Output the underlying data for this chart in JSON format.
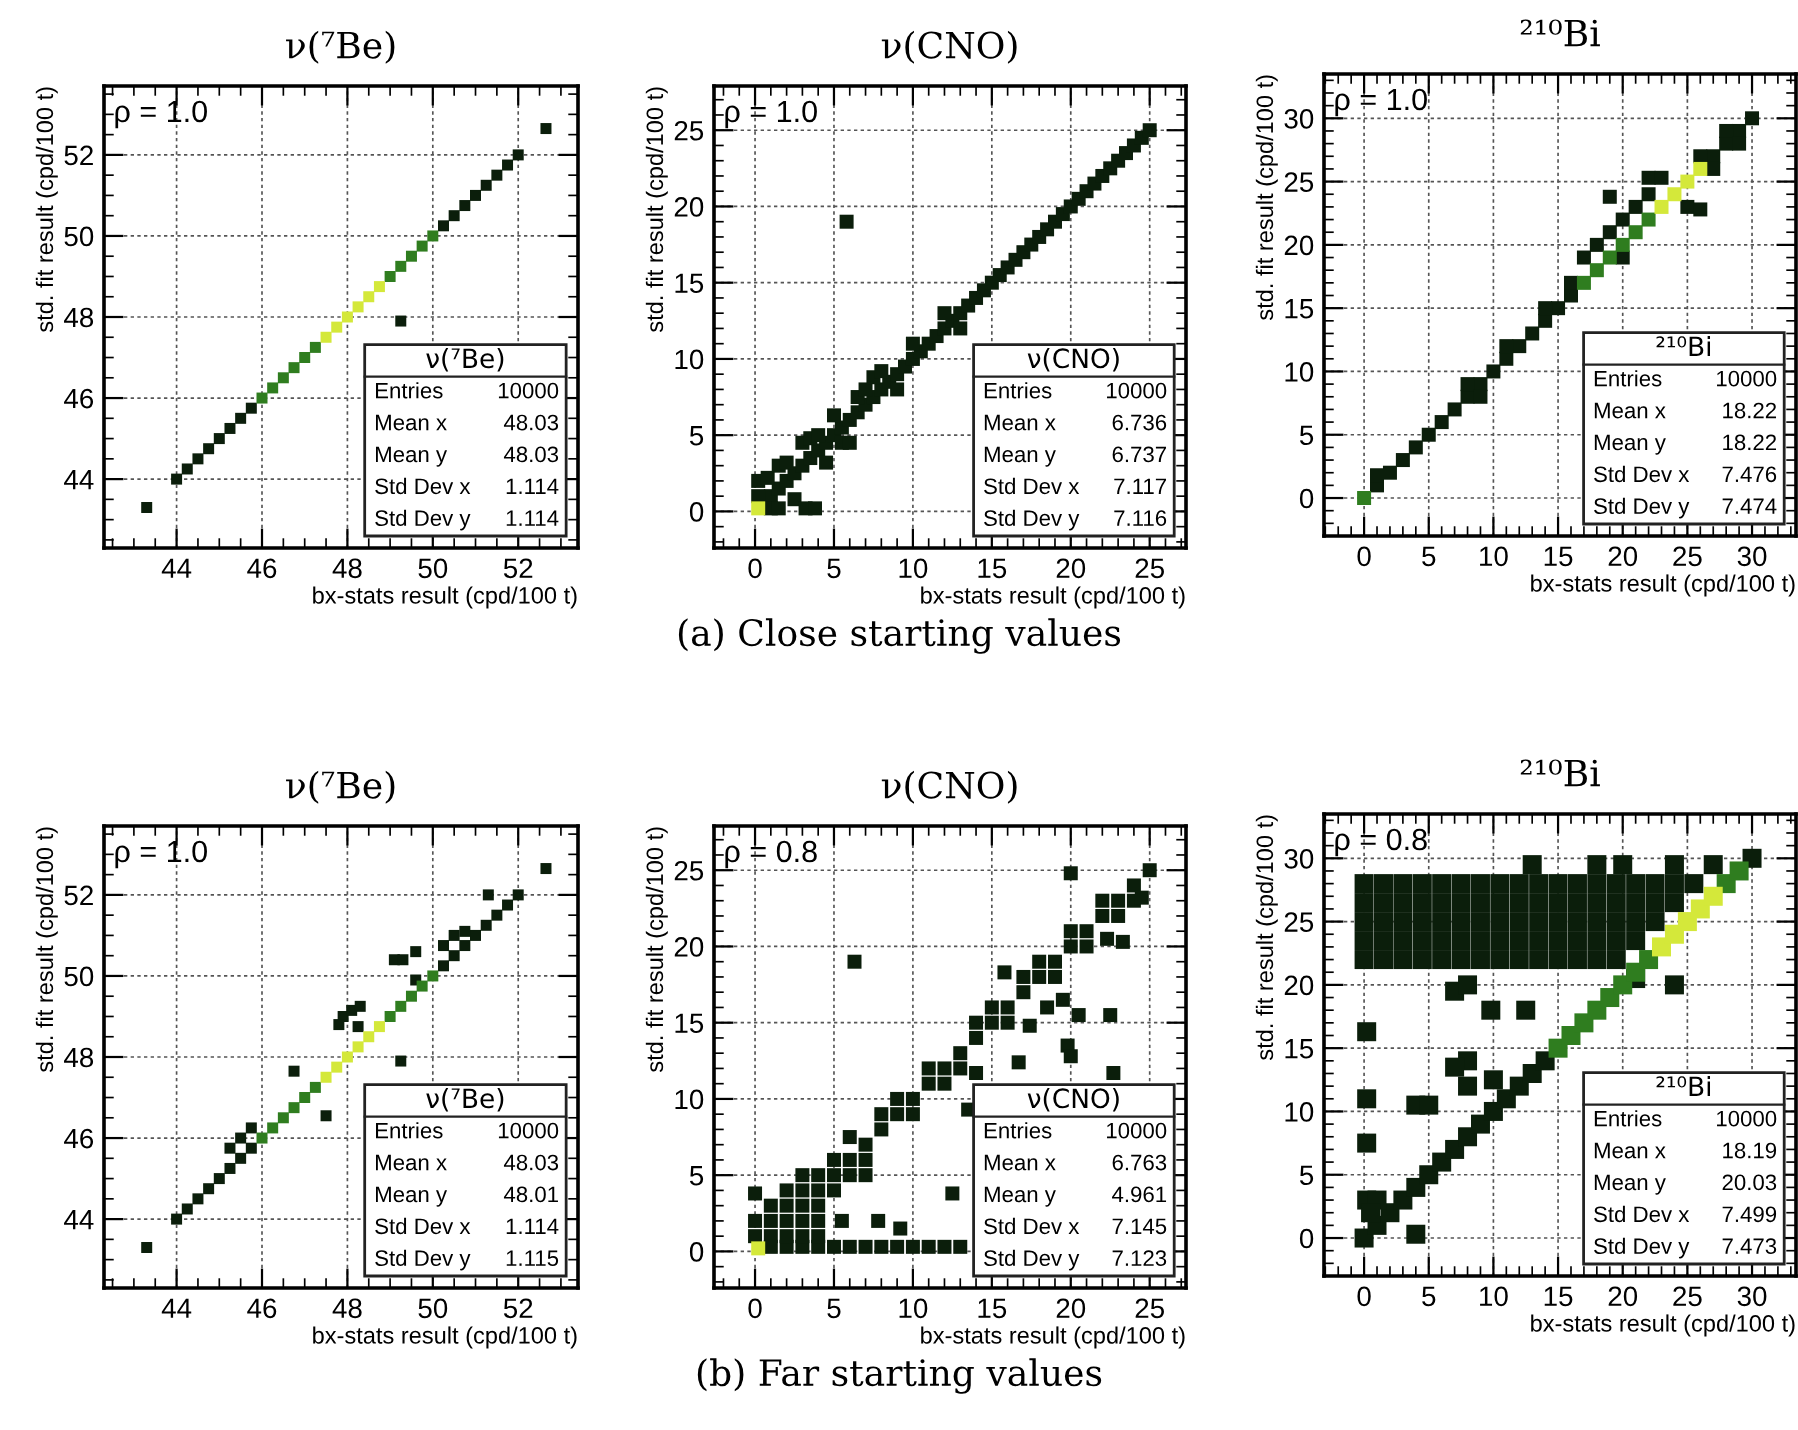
{
  "chart_data": [
    {
      "type": "scatter",
      "title": "ν(⁷Be)",
      "xlabel": "bx-stats result (cpd/100 t)",
      "ylabel": "std. fit result (cpd/100 t)",
      "xlim": [
        42.3,
        53.4
      ],
      "ylim": [
        42.3,
        53.7
      ],
      "xticks": [
        44,
        46,
        48,
        50,
        52
      ],
      "yticks": [
        44,
        46,
        48,
        50,
        52
      ],
      "grid": true,
      "marker": "square",
      "annotations": [
        "ρ = 1.0",
        "ν(⁷Be)",
        "Entries",
        "10000",
        "Mean x",
        "48.03",
        "Mean y",
        "48.03",
        "Std Dev x",
        "1.114",
        "Std Dev y",
        "1.114"
      ],
      "series": [
        {
          "color": "#0b1e0b",
          "x": [
            44,
            44.25,
            44.5,
            44.75,
            45,
            45.25,
            45.5,
            45.75,
            50.25,
            50.5,
            50.75,
            51,
            51.25,
            51.5,
            51.75,
            52,
            43.3,
            52.65,
            49.25
          ],
          "values": [
            44,
            44.25,
            44.5,
            44.75,
            45,
            45.25,
            45.5,
            45.75,
            50.25,
            50.5,
            50.75,
            51,
            51.25,
            51.5,
            51.75,
            52,
            43.3,
            52.65,
            47.9
          ]
        },
        {
          "color": "#2f7d1f",
          "x": [
            46,
            46.25,
            46.5,
            46.75,
            47,
            47.25,
            49,
            49.25,
            49.5,
            49.75,
            50
          ],
          "values": [
            46,
            46.25,
            46.5,
            46.75,
            47,
            47.25,
            49,
            49.25,
            49.5,
            49.75,
            50
          ]
        },
        {
          "color": "#d4e83a",
          "x": [
            47.5,
            47.75,
            48,
            48.25,
            48.5,
            48.75
          ],
          "values": [
            47.5,
            47.75,
            48,
            48.25,
            48.5,
            48.75
          ]
        }
      ]
    },
    {
      "type": "scatter",
      "title": "ν(CNO)",
      "xlabel": "bx-stats result (cpd/100 t)",
      "ylabel": "std. fit result (cpd/100 t)",
      "xlim": [
        -2.6,
        27.3
      ],
      "ylim": [
        -2.4,
        27.9
      ],
      "xticks": [
        0,
        5,
        10,
        15,
        20,
        25
      ],
      "yticks": [
        0,
        5,
        10,
        15,
        20,
        25
      ],
      "grid": true,
      "marker": "square",
      "annotations": [
        "ρ = 1.0",
        "ν(CNO)",
        "Entries",
        "10000",
        "Mean x",
        "6.736",
        "Mean y",
        "6.737",
        "Std Dev x",
        "7.117",
        "Std Dev y",
        "7.116",
        "(a) Close starting values"
      ],
      "series": [
        {
          "color": "#0b1e0b",
          "x": [
            1,
            1.5,
            2,
            2.5,
            3,
            3.5,
            4,
            4.5,
            5,
            5.5,
            6,
            6.5,
            7,
            7.5,
            8,
            8.5,
            9,
            9.5,
            10,
            10.5,
            11,
            11.5,
            12,
            12.5,
            13,
            13.5,
            14,
            14.5,
            15,
            15.5,
            16,
            16.5,
            17,
            17.5,
            18,
            18.5,
            19,
            19.5,
            20,
            20.5,
            21,
            21.5,
            22,
            22.5,
            23,
            23.5,
            24,
            24.5,
            25,
            0.2,
            0.2,
            0.8,
            1.5,
            2,
            2.5,
            3,
            3.5,
            4,
            4.5,
            5,
            5.5,
            6,
            6.5,
            7,
            7.5,
            8,
            9,
            10,
            12,
            13,
            1,
            1.5,
            3.2,
            3.8,
            5.8
          ],
          "values": [
            1,
            1.5,
            2,
            2.5,
            3,
            3.5,
            4,
            4.5,
            5,
            5.5,
            6,
            6.5,
            7,
            7.5,
            8,
            8.5,
            9,
            9.5,
            10,
            10.5,
            11,
            11.5,
            12,
            12.5,
            13,
            13.5,
            14,
            14.5,
            15,
            15.5,
            16,
            16.5,
            17,
            17.5,
            18,
            18.5,
            19,
            19.5,
            20,
            20.5,
            21,
            21.5,
            22,
            22.5,
            23,
            23.5,
            24,
            24.5,
            25,
            1,
            2,
            2.2,
            3,
            3.2,
            0.8,
            4.5,
            4.8,
            5,
            3.2,
            6.3,
            4.5,
            4.5,
            7.5,
            8,
            8.8,
            9.2,
            8,
            11,
            13,
            12,
            0.2,
            0.2,
            0.2,
            0.2,
            19
          ]
        },
        {
          "color": "#d4e83a",
          "x": [
            0.2
          ],
          "values": [
            0.2
          ]
        }
      ]
    },
    {
      "type": "scatter",
      "title": "²¹⁰Bi",
      "xlabel": "bx-stats result (cpd/100 t)",
      "ylabel": "std. fit result (cpd/100 t)",
      "xlim": [
        -3.1,
        33.4
      ],
      "ylim": [
        -3.0,
        33.5
      ],
      "xticks": [
        0,
        5,
        10,
        15,
        20,
        25,
        30
      ],
      "yticks": [
        0,
        5,
        10,
        15,
        20,
        25,
        30
      ],
      "grid": true,
      "marker": "square",
      "annotations": [
        "ρ = 1.0",
        "²¹⁰Bi",
        "Entries",
        "10000",
        "Mean x",
        "18.22",
        "Mean y",
        "18.22",
        "Std Dev x",
        "7.476",
        "Std Dev y",
        "7.474"
      ],
      "series": [
        {
          "color": "#0b1e0b",
          "x": [
            1,
            2,
            3,
            4,
            5,
            6,
            7,
            8,
            9,
            10,
            11,
            12,
            13,
            14,
            15,
            16,
            27,
            28,
            29,
            30,
            18,
            19,
            17,
            20,
            21,
            22,
            20,
            16,
            25,
            26,
            19,
            22,
            23,
            28,
            29,
            26,
            27,
            14,
            11,
            8,
            9,
            1
          ],
          "values": [
            1,
            2,
            3,
            4,
            5,
            6,
            7,
            8,
            9,
            10,
            11,
            12,
            13,
            14,
            15,
            16,
            27,
            28,
            29,
            30,
            20,
            21,
            19,
            22,
            23,
            24,
            19,
            17,
            23,
            22.8,
            23.8,
            25.3,
            25.3,
            29,
            28,
            27,
            26,
            15,
            12,
            9,
            8,
            1.8
          ]
        },
        {
          "color": "#2f7d1f",
          "x": [
            0,
            17,
            18,
            19,
            20,
            21,
            22
          ],
          "values": [
            0,
            17,
            18,
            19,
            20,
            21,
            22
          ]
        },
        {
          "color": "#d4e83a",
          "x": [
            23,
            24,
            25,
            26
          ],
          "values": [
            23,
            24,
            25,
            26
          ]
        }
      ]
    },
    {
      "type": "scatter",
      "title": "ν(⁷Be)",
      "xlabel": "bx-stats result (cpd/100 t)",
      "ylabel": "std. fit result (cpd/100 t)",
      "xlim": [
        42.3,
        53.4
      ],
      "ylim": [
        42.3,
        53.7
      ],
      "xticks": [
        44,
        46,
        48,
        50,
        52
      ],
      "yticks": [
        44,
        46,
        48,
        50,
        52
      ],
      "grid": true,
      "marker": "square",
      "annotations": [
        "ρ = 1.0",
        "ν(⁷Be)",
        "Entries",
        "10000",
        "Mean x",
        "48.03",
        "Mean y",
        "48.01",
        "Std Dev x",
        "1.114",
        "Std Dev y",
        "1.115"
      ],
      "series": [
        {
          "color": "#0b1e0b",
          "x": [
            44,
            44.25,
            44.5,
            44.75,
            45,
            45.25,
            45.5,
            45.75,
            50.25,
            50.5,
            50.75,
            51,
            51.25,
            51.5,
            51.75,
            52,
            45.25,
            45.5,
            45.75,
            46.75,
            47.5,
            47.9,
            48.1,
            48.3,
            47.8,
            48.25,
            49.25,
            49.1,
            49.3,
            49.6,
            49.6,
            50.25,
            50.5,
            50.75,
            51.3,
            52.65,
            43.3
          ],
          "values": [
            44,
            44.25,
            44.5,
            44.75,
            45,
            45.25,
            45.5,
            45.75,
            50.25,
            50.5,
            50.75,
            51,
            51.25,
            51.5,
            51.75,
            52,
            45.75,
            46,
            46.25,
            47.65,
            46.55,
            49,
            49.15,
            49.25,
            48.8,
            48.75,
            47.9,
            50.4,
            50.4,
            50.6,
            49.9,
            50.75,
            51,
            51.1,
            52,
            52.65,
            43.3
          ]
        },
        {
          "color": "#2f7d1f",
          "x": [
            46,
            46.25,
            46.5,
            46.75,
            47,
            47.25,
            49,
            49.25,
            49.5,
            49.75,
            50
          ],
          "values": [
            46,
            46.25,
            46.5,
            46.75,
            47,
            47.25,
            49,
            49.25,
            49.5,
            49.75,
            50
          ]
        },
        {
          "color": "#d4e83a",
          "x": [
            47.5,
            47.75,
            48,
            48.25,
            48.5,
            48.75
          ],
          "values": [
            47.5,
            47.75,
            48,
            48.25,
            48.5,
            48.75
          ]
        }
      ]
    },
    {
      "type": "scatter",
      "title": "ν(CNO)",
      "xlabel": "bx-stats result (cpd/100 t)",
      "ylabel": "std. fit result (cpd/100 t)",
      "xlim": [
        -2.6,
        27.3
      ],
      "ylim": [
        -2.4,
        27.9
      ],
      "xticks": [
        0,
        5,
        10,
        15,
        20,
        25
      ],
      "yticks": [
        0,
        5,
        10,
        15,
        20,
        25
      ],
      "grid": true,
      "marker": "square",
      "annotations": [
        "ρ = 0.8",
        "ν(CNO)",
        "Entries",
        "10000",
        "Mean x",
        "6.763",
        "Mean y",
        "4.961",
        "Std Dev x",
        "7.145",
        "Std Dev y",
        "7.123",
        "(b) Far starting values"
      ],
      "series": [
        {
          "color": "#0b1e0b",
          "x": [
            1,
            2,
            3,
            4,
            5,
            6,
            7,
            8,
            9,
            10,
            11,
            12,
            13,
            14,
            15,
            16,
            17,
            18,
            19,
            20,
            21,
            22,
            23,
            24,
            25,
            1,
            2,
            3,
            4,
            5,
            6,
            7,
            8,
            9,
            10,
            11,
            12,
            13,
            0,
            0,
            0,
            1,
            1,
            2,
            2,
            2,
            3,
            3,
            3,
            3,
            4,
            4,
            4,
            4,
            5,
            5,
            6,
            6,
            7,
            8,
            9,
            10,
            11,
            12,
            13,
            14,
            15,
            16,
            17,
            18,
            19,
            20,
            21,
            22,
            23,
            24,
            6.3,
            5.5,
            7.8,
            9.2,
            7,
            12.5,
            13.5,
            14,
            15.8,
            16.7,
            17.4,
            18.5,
            19.5,
            19.8,
            20,
            20.5,
            22.5,
            22.7,
            20,
            22.3,
            23.3,
            24.5
          ],
          "values": [
            1,
            2,
            3,
            4,
            5,
            6,
            7,
            8,
            9,
            10,
            11,
            12,
            13,
            14,
            15,
            16,
            17,
            18,
            19,
            20,
            21,
            22,
            23,
            24,
            25,
            0.3,
            0.3,
            0.3,
            0.3,
            0.3,
            0.3,
            0.3,
            0.3,
            0.3,
            0.3,
            0.3,
            0.3,
            0.3,
            1,
            2,
            3.8,
            2,
            3,
            1,
            3,
            4,
            1,
            2,
            4,
            5,
            1,
            2,
            3,
            5,
            4,
            6,
            5,
            7.5,
            6,
            9,
            10,
            9,
            12,
            11,
            12,
            15,
            16,
            15,
            18,
            19,
            18,
            21,
            20,
            23,
            22,
            23,
            19,
            2,
            2,
            1.5,
            5,
            3.8,
            9.3,
            11.7,
            18.3,
            12.4,
            14.8,
            16,
            16.5,
            13.5,
            12.8,
            15.5,
            15.5,
            11.7,
            24.8,
            20.5,
            20.3,
            23.2
          ]
        },
        {
          "color": "#d4e83a",
          "x": [
            0.2
          ],
          "values": [
            0.2
          ]
        }
      ]
    },
    {
      "type": "scatter",
      "title": "²¹⁰Bi",
      "xlabel": "bx-stats result (cpd/100 t)",
      "ylabel": "std. fit result (cpd/100 t)",
      "xlim": [
        -3.1,
        33.4
      ],
      "ylim": [
        -3.0,
        33.5
      ],
      "xticks": [
        0,
        5,
        10,
        15,
        20,
        25,
        30
      ],
      "yticks": [
        0,
        5,
        10,
        15,
        20,
        25,
        30
      ],
      "grid": true,
      "marker": "square",
      "annotations": [
        "ρ = 0.8",
        "²¹⁰Bi",
        "Entries",
        "10000",
        "Mean x",
        "18.19",
        "Mean y",
        "20.03",
        "Std Dev x",
        "7.499",
        "Std Dev y",
        "7.473"
      ],
      "series": [
        {
          "color": "#0b1e0b",
          "x": [
            0,
            1,
            2,
            3,
            4,
            5,
            6,
            7,
            8,
            9,
            10,
            11,
            12,
            13,
            14,
            30,
            0,
            1.5,
            3,
            4.5,
            6,
            7.5,
            9,
            10.5,
            12,
            13.5,
            15,
            16.5,
            18,
            19.5,
            0,
            1.5,
            3,
            4.5,
            6,
            7.5,
            9,
            10.5,
            12,
            13.5,
            15,
            16.5,
            18,
            19.5,
            21,
            0,
            1.5,
            3,
            4.5,
            6,
            7.5,
            9,
            10.5,
            12,
            13.5,
            15,
            16.5,
            18,
            19.5,
            21,
            22.5,
            0,
            1.5,
            3,
            4.5,
            6,
            7.5,
            9,
            10.5,
            12,
            13.5,
            15,
            16.5,
            18,
            19.5,
            21,
            22.5,
            24,
            0,
            1.5,
            3,
            4.5,
            6,
            7.5,
            9,
            10.5,
            12,
            13.5,
            15,
            16.5,
            18,
            19.5,
            21,
            22.5,
            24,
            25.5,
            13,
            18,
            20,
            24,
            27,
            0.2,
            0.2,
            0.2,
            0.2,
            1,
            0.5,
            4,
            5,
            4,
            8,
            8,
            7,
            10,
            9.8,
            12.5,
            7,
            8,
            21,
            24
          ],
          "values": [
            0,
            1,
            2,
            3,
            4,
            5,
            6,
            7,
            8,
            9,
            10,
            11,
            12,
            13,
            14,
            30,
            22,
            22,
            22,
            22,
            22,
            22,
            22,
            22,
            22,
            22,
            22,
            22,
            22,
            22,
            23.5,
            23.5,
            23.5,
            23.5,
            23.5,
            23.5,
            23.5,
            23.5,
            23.5,
            23.5,
            23.5,
            23.5,
            23.5,
            23.5,
            23.5,
            25,
            25,
            25,
            25,
            25,
            25,
            25,
            25,
            25,
            25,
            25,
            25,
            25,
            25,
            25,
            25,
            26.5,
            26.5,
            26.5,
            26.5,
            26.5,
            26.5,
            26.5,
            26.5,
            26.5,
            26.5,
            26.5,
            26.5,
            26.5,
            26.5,
            26.5,
            26.5,
            26.5,
            28,
            28,
            28,
            28,
            28,
            28,
            28,
            28,
            28,
            28,
            28,
            28,
            28,
            28,
            28,
            28,
            28,
            28,
            29.5,
            29.5,
            29.5,
            29.5,
            29.5,
            16.3,
            11,
            7.5,
            3,
            3,
            2,
            10.5,
            10.5,
            0.3,
            14,
            12,
            13.5,
            12.5,
            18,
            18,
            19.5,
            20,
            20.5,
            20
          ]
        },
        {
          "color": "#2f7d1f",
          "x": [
            15,
            16,
            17,
            18,
            19,
            20,
            21,
            22,
            28,
            29
          ],
          "values": [
            15,
            16,
            17,
            18,
            19,
            20,
            21,
            22,
            28,
            29
          ]
        },
        {
          "color": "#d4e83a",
          "x": [
            23,
            24,
            25,
            26,
            27
          ],
          "values": [
            23,
            24,
            25,
            26,
            27
          ]
        }
      ]
    }
  ]
}
